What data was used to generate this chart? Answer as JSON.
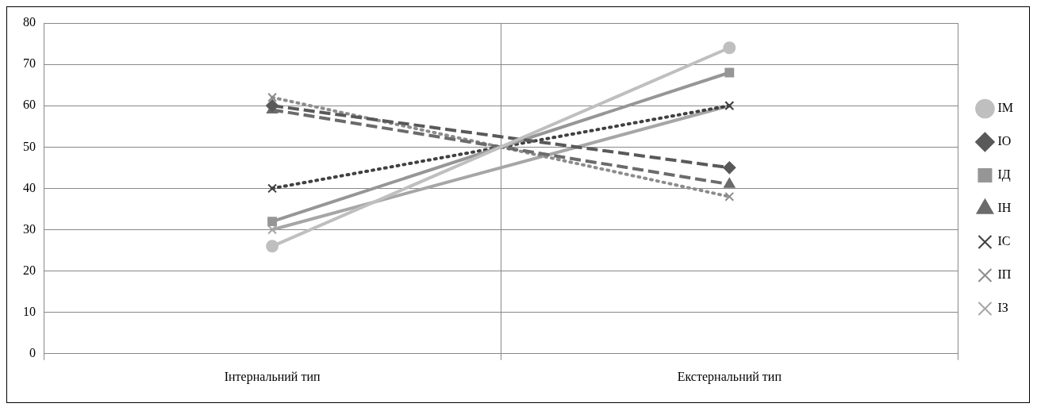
{
  "chart_data": {
    "type": "line",
    "categories": [
      "Інтернальний тип",
      "Екстернальний тип"
    ],
    "ylim": [
      0,
      80
    ],
    "yticks": [
      0,
      10,
      20,
      30,
      40,
      50,
      60,
      70,
      80
    ],
    "grid": true,
    "legend": "right",
    "series": [
      {
        "name": "ІМ",
        "color": "#bfbfbf",
        "values": [
          26,
          74
        ],
        "marker": "circle",
        "line_style": "solid"
      },
      {
        "name": "ІО",
        "color": "#595959",
        "values": [
          60,
          45
        ],
        "marker": "diamond",
        "line_style": "dashed"
      },
      {
        "name": "ІД",
        "color": "#969696",
        "values": [
          32,
          68
        ],
        "marker": "square",
        "line_style": "solid"
      },
      {
        "name": "ІН",
        "color": "#6b6b6b",
        "values": [
          59,
          41
        ],
        "marker": "triangle",
        "line_style": "dashed"
      },
      {
        "name": "ІС",
        "color": "#404040",
        "values": [
          40,
          60
        ],
        "marker": "cross",
        "line_style": "dotted"
      },
      {
        "name": "ІП",
        "color": "#8c8c8c",
        "values": [
          62,
          38
        ],
        "marker": "cross",
        "line_style": "dotted"
      },
      {
        "name": "ІЗ",
        "color": "#a6a6a6",
        "values": [
          30,
          60
        ],
        "marker": "cross",
        "line_style": "solid"
      }
    ]
  }
}
